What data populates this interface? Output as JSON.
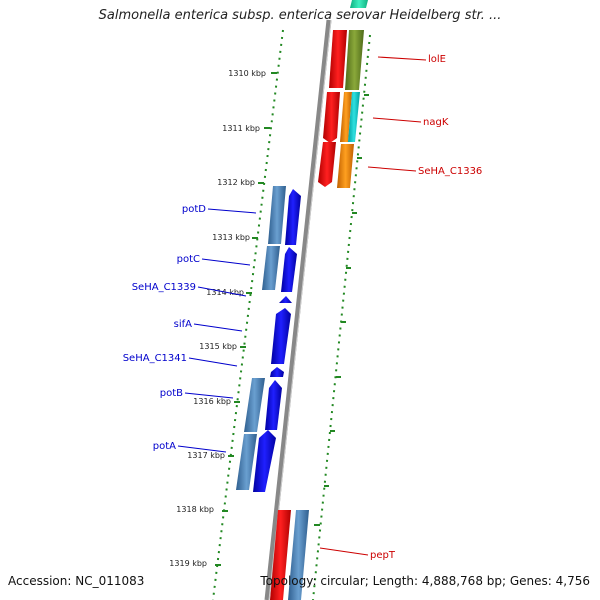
{
  "title": "Salmonella enterica subsp. enterica serovar Heidelberg str. ...",
  "accession": "Accession: NC_011083",
  "topology": "Topology: circular; Length: 4,888,768 bp; Genes: 4,756",
  "scale_labels": [
    "1310 kbp",
    "1311 kbp",
    "1312 kbp",
    "1313 kbp",
    "1314 kbp",
    "1315 kbp",
    "1316 kbp",
    "1317 kbp",
    "1318 kbp",
    "1319 kbp"
  ],
  "reverse_genes": [
    "potD",
    "potC",
    "SeHA_C1339",
    "sifA",
    "SeHA_C1341",
    "potB",
    "potA"
  ],
  "forward_genes": [
    "lolE",
    "nagK",
    "SeHA_C1336",
    "pepT"
  ],
  "colors": {
    "forward_label": "#cc0000",
    "reverse_label": "#0000cc",
    "scale_dots": "#228822",
    "backbone": "#888888"
  }
}
